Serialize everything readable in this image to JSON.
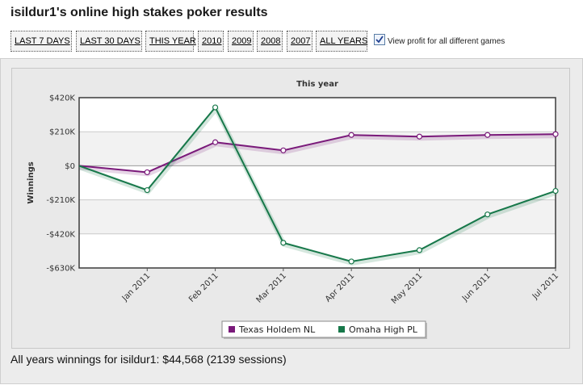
{
  "page": {
    "title": "isildur1's online high stakes poker results",
    "summary": "All years winnings for isildur1: $44,568 (2139 sessions)"
  },
  "filters": [
    {
      "label": "LAST 7 DAYS"
    },
    {
      "label": "LAST 30 DAYS"
    },
    {
      "label": "THIS YEAR"
    },
    {
      "label": "2010"
    },
    {
      "label": "2009"
    },
    {
      "label": "2008"
    },
    {
      "label": "2007"
    },
    {
      "label": "ALL YEARS"
    }
  ],
  "view_profit_toggle": {
    "label": "View profit for all different games",
    "checked": true
  },
  "chart_data": {
    "type": "line",
    "title": "This year",
    "ylabel": "Winnings",
    "xlabel": "",
    "x": [
      "",
      "Jan 2011",
      "Feb 2011",
      "Mar 2011",
      "Apr 2011",
      "May 2011",
      "Jun 2011",
      "Jul 2011"
    ],
    "ylim": [
      -630000,
      420000
    ],
    "yticks": [
      420000,
      210000,
      0,
      -210000,
      -420000,
      -630000
    ],
    "ytick_labels": [
      "$420K",
      "$210K",
      "$0",
      "-$210K",
      "-$420K",
      "-$630K"
    ],
    "grid": true,
    "legend_position": "bottom-center",
    "series": [
      {
        "name": "Texas Holdem NL",
        "color": "#7a1a7a",
        "values": [
          0,
          -40000,
          145000,
          95000,
          190000,
          180000,
          190000,
          195000
        ]
      },
      {
        "name": "Omaha High PL",
        "color": "#17784a",
        "values": [
          0,
          -150000,
          360000,
          -475000,
          -590000,
          -520000,
          -300000,
          -155000
        ]
      }
    ]
  }
}
